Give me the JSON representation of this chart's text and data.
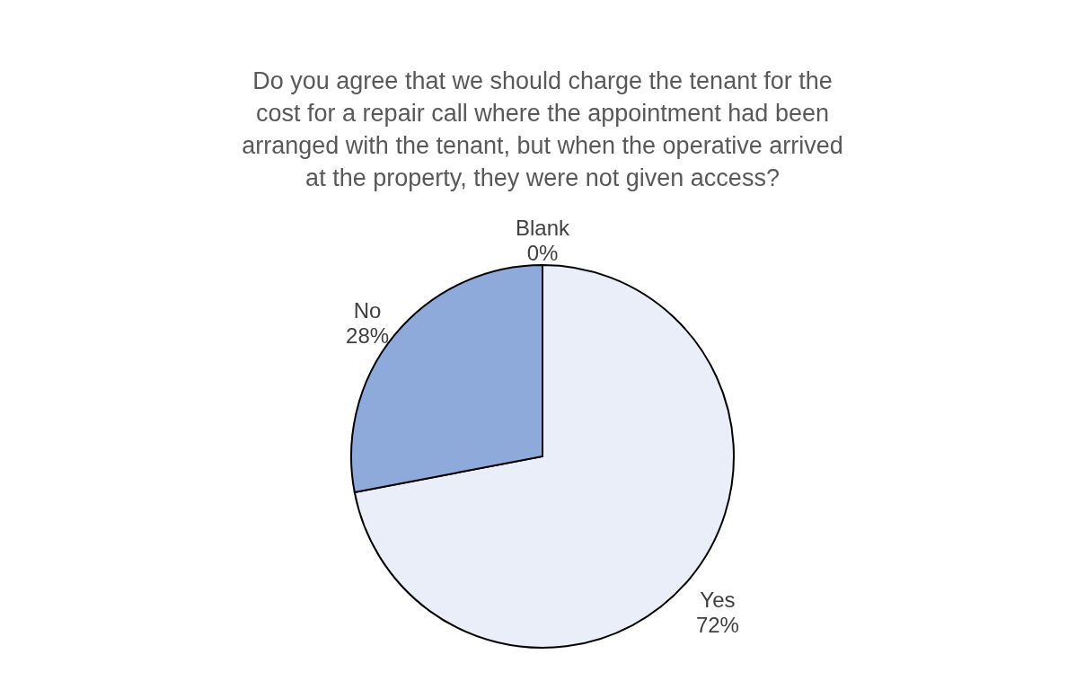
{
  "chart_data": {
    "type": "pie",
    "title": "Do you agree that we should charge the tenant for the cost for a repair call where the appointment had been arranged with the tenant, but when the operative arrived at the property, they were not given access?",
    "categories": [
      "Yes",
      "No",
      "Blank"
    ],
    "values": [
      72,
      28,
      0
    ],
    "value_labels": [
      "72%",
      "28%",
      "0%"
    ],
    "colors": [
      "#e9eef8",
      "#8eaadb",
      "#2f5597"
    ],
    "legend": false
  }
}
